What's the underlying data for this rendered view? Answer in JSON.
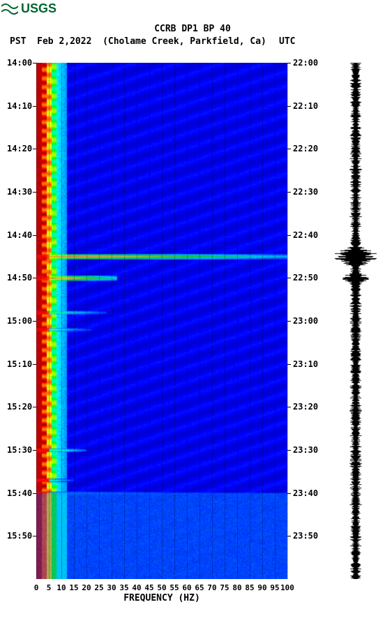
{
  "logo": {
    "text": "USGS",
    "color": "#006633"
  },
  "header": {
    "title": "CCRB DP1 BP 40",
    "tz_left": "PST",
    "date": "Feb 2,2022",
    "location": "(Cholame Creek, Parkfield, Ca)",
    "tz_right": "UTC"
  },
  "spectrogram": {
    "type": "spectrogram",
    "x_label": "FREQUENCY (HZ)",
    "xlim": [
      0,
      100
    ],
    "x_ticks": [
      0,
      5,
      10,
      15,
      20,
      25,
      30,
      35,
      40,
      45,
      50,
      55,
      60,
      65,
      70,
      75,
      80,
      85,
      90,
      95,
      100
    ],
    "y_ticks_left": [
      "14:00",
      "14:10",
      "14:20",
      "14:30",
      "14:40",
      "14:50",
      "15:00",
      "15:10",
      "15:20",
      "15:30",
      "15:40",
      "15:50"
    ],
    "y_ticks_right": [
      "22:00",
      "22:10",
      "22:20",
      "22:30",
      "22:40",
      "22:50",
      "23:00",
      "23:10",
      "23:20",
      "23:30",
      "23:40",
      "23:50"
    ],
    "y_minutes_span": 120,
    "colormap": {
      "stops": [
        {
          "v": 0.0,
          "c": "#00007f"
        },
        {
          "v": 0.15,
          "c": "#0000ff"
        },
        {
          "v": 0.35,
          "c": "#00ffff"
        },
        {
          "v": 0.5,
          "c": "#00ff00"
        },
        {
          "v": 0.65,
          "c": "#ffff00"
        },
        {
          "v": 0.8,
          "c": "#ff7f00"
        },
        {
          "v": 0.9,
          "c": "#ff0000"
        },
        {
          "v": 1.0,
          "c": "#7f0000"
        }
      ]
    },
    "background_color": "#0000cf",
    "events": [
      {
        "minute": 45,
        "freq_extent": 100,
        "intensity": 0.85
      },
      {
        "minute": 50,
        "freq_extent": 32,
        "intensity": 0.95
      },
      {
        "minute": 58,
        "freq_extent": 28,
        "intensity": 0.55
      },
      {
        "minute": 62,
        "freq_extent": 22,
        "intensity": 0.5
      },
      {
        "minute": 90,
        "freq_extent": 20,
        "intensity": 0.55
      },
      {
        "minute": 97,
        "freq_extent": 15,
        "intensity": 0.5
      },
      {
        "minute": 100,
        "freq_extent": 100,
        "intensity": 0.32
      }
    ],
    "low_freq_band": {
      "freq_max": 12,
      "continuous": true
    }
  },
  "seismogram": {
    "color": "#000000",
    "events": [
      {
        "minute": 45,
        "amp": 1.0
      },
      {
        "minute": 50,
        "amp": 0.5
      },
      {
        "minute": 58,
        "amp": 0.2
      },
      {
        "minute": 90,
        "amp": 0.15
      }
    ]
  }
}
